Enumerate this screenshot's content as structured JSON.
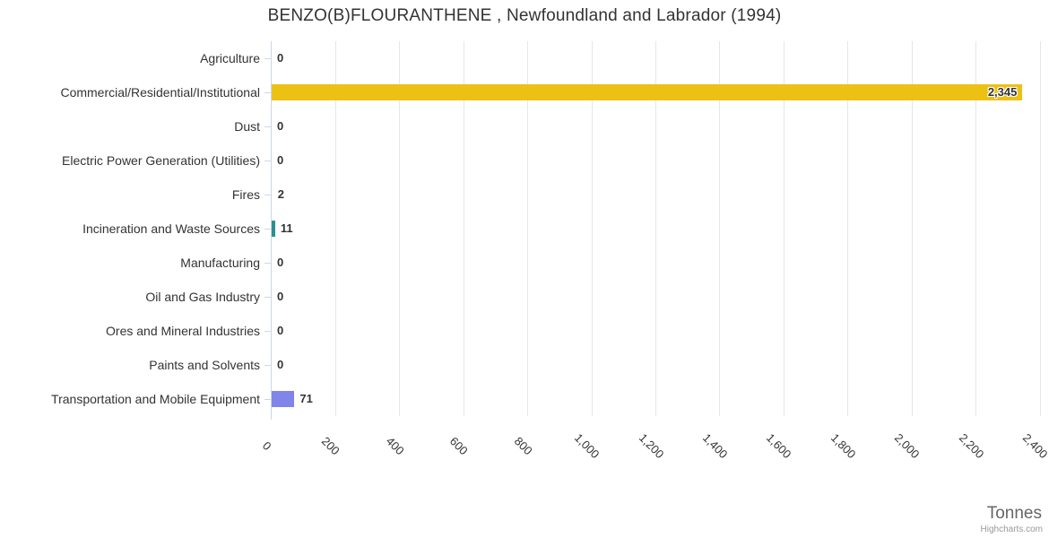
{
  "chart_data": {
    "type": "bar",
    "orientation": "horizontal",
    "title": "BENZO(B)FLOURANTHENE , Newfoundland and Labrador (1994)",
    "categories": [
      "Agriculture",
      "Commercial/Residential/Institutional",
      "Dust",
      "Electric Power Generation (Utilities)",
      "Fires",
      "Incineration and Waste Sources",
      "Manufacturing",
      "Oil and Gas Industry",
      "Ores and Mineral Industries",
      "Paints and Solvents",
      "Transportation and Mobile Equipment"
    ],
    "values": [
      0,
      2345,
      0,
      0,
      2,
      11,
      0,
      0,
      0,
      0,
      71
    ],
    "value_labels": [
      "0",
      "2,345",
      "0",
      "0",
      "2",
      "11",
      "0",
      "0",
      "0",
      "0",
      "71"
    ],
    "bar_colors": [
      null,
      "#ecc114",
      null,
      null,
      null,
      "#2b908f",
      null,
      null,
      null,
      null,
      "#8085e9"
    ],
    "xlabel": "Tonnes",
    "xlim": [
      0,
      2400
    ],
    "x_ticks": [
      0,
      200,
      400,
      600,
      800,
      1000,
      1200,
      1400,
      1600,
      1800,
      2000,
      2200,
      2400
    ],
    "x_tick_labels": [
      "0",
      "200",
      "400",
      "600",
      "800",
      "1,000",
      "1,200",
      "1,400",
      "1,600",
      "1,800",
      "2,000",
      "2,200",
      "2,400"
    ],
    "grid": "vertical-only",
    "legend": false,
    "colors": {
      "grid_line": "#e6e6e6",
      "axis_line": "#ccd6eb",
      "label_text": "#333333",
      "axis_title_text": "#666666",
      "credit_text": "#999999"
    }
  },
  "credits": {
    "label": "Highcharts.com"
  }
}
